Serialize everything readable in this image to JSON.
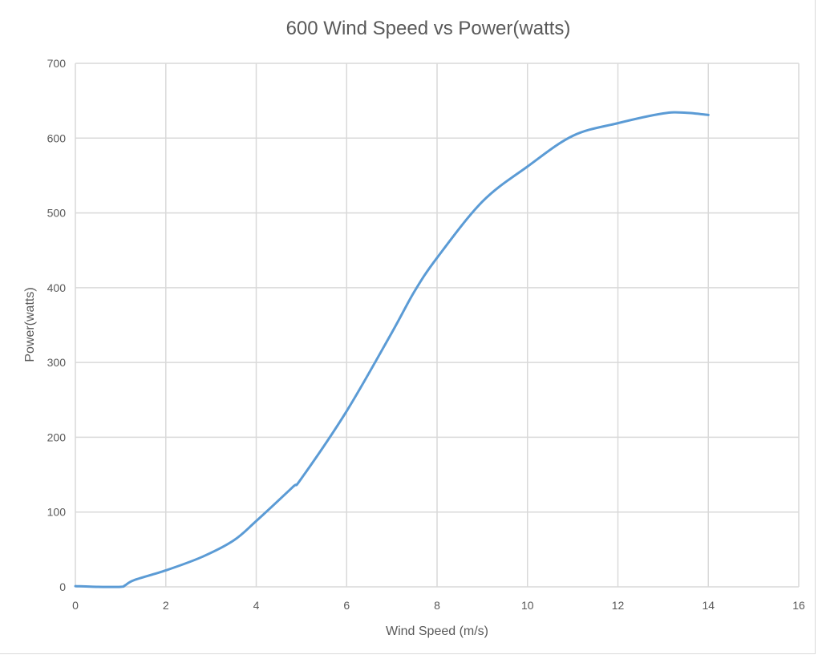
{
  "chart_data": {
    "type": "line",
    "title": "600 Wind Speed vs Power(watts)",
    "xlabel": "Wind Speed (m/s)",
    "ylabel": "Power(watts)",
    "xlim": [
      0,
      16
    ],
    "ylim": [
      0,
      700
    ],
    "xticks": [
      0,
      2,
      4,
      6,
      8,
      10,
      12,
      14,
      16
    ],
    "yticks": [
      0,
      100,
      200,
      300,
      400,
      500,
      600,
      700
    ],
    "grid": true,
    "smooth": true,
    "series_color": "#5b9bd5",
    "x": [
      0,
      0.5,
      1,
      1.1,
      1.3,
      2,
      2.8,
      3.5,
      4,
      4.8,
      5,
      6,
      7,
      7.5,
      8,
      9,
      10,
      11,
      12,
      13,
      13.5,
      14
    ],
    "y": [
      1,
      0,
      0,
      2,
      9,
      22,
      40,
      62,
      88,
      133,
      145,
      235,
      340,
      395,
      440,
      515,
      562,
      603,
      620,
      633,
      634,
      631
    ]
  }
}
